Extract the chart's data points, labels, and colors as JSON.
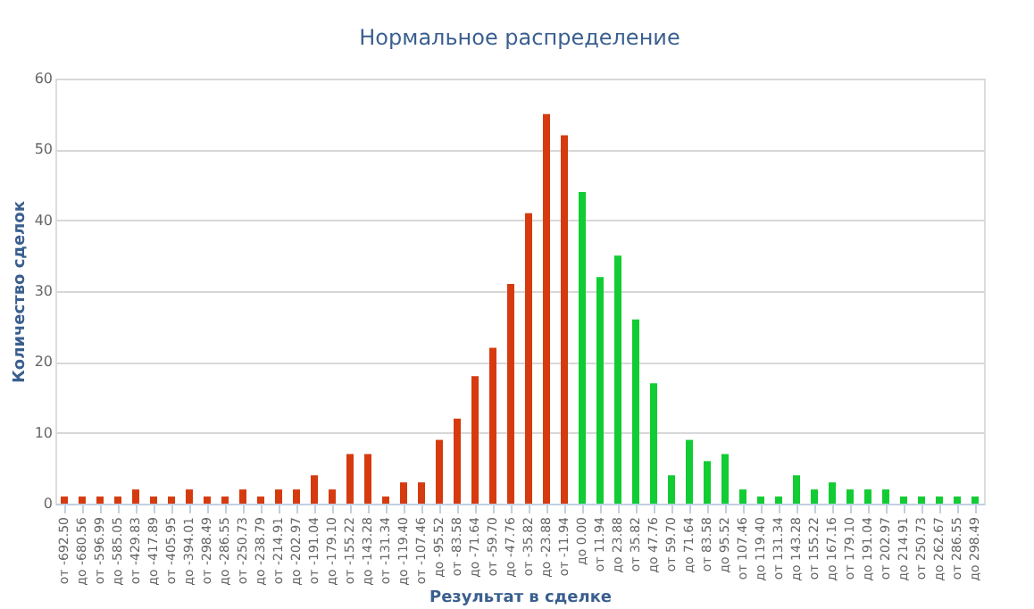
{
  "chart_data": {
    "type": "bar",
    "title": "Нормальное распределение",
    "xlabel": "Результат в сделке",
    "ylabel": "Количество сделок",
    "categories": [
      "от -692.50",
      "до -680.56",
      "от -596.99",
      "до -585.05",
      "от -429.83",
      "до -417.89",
      "от -405.95",
      "до -394.01",
      "от -298.49",
      "до -286.55",
      "от -250.73",
      "до -238.79",
      "от -214.91",
      "до -202.97",
      "от -191.04",
      "до -179.10",
      "от -155.22",
      "до -143.28",
      "от -131.34",
      "до -119.40",
      "от -107.46",
      "до -95.52",
      "от -83.58",
      "до -71.64",
      "от -59.70",
      "до -47.76",
      "от -35.82",
      "до -23.88",
      "от -11.94",
      "до 0.00",
      "от 11.94",
      "до 23.88",
      "от 35.82",
      "до 47.76",
      "от 59.70",
      "до 71.64",
      "от 83.58",
      "до 95.52",
      "от 107.46",
      "до 119.40",
      "от 131.34",
      "до 143.28",
      "от 155.22",
      "до 167.16",
      "от 179.10",
      "до 191.04",
      "от 202.97",
      "до 214.91",
      "от 250.73",
      "до 262.67",
      "от 286.55",
      "до 298.49"
    ],
    "values": [
      1,
      1,
      1,
      1,
      2,
      1,
      1,
      2,
      1,
      1,
      2,
      1,
      2,
      2,
      4,
      2,
      7,
      7,
      1,
      3,
      3,
      9,
      12,
      18,
      22,
      31,
      41,
      55,
      52,
      44,
      32,
      35,
      26,
      17,
      4,
      9,
      6,
      7,
      2,
      1,
      1,
      4,
      2,
      3,
      2,
      2,
      2,
      1,
      1,
      1,
      1,
      1
    ],
    "colors": [
      "#d63a0f",
      "#d63a0f",
      "#d63a0f",
      "#d63a0f",
      "#d63a0f",
      "#d63a0f",
      "#d63a0f",
      "#d63a0f",
      "#d63a0f",
      "#d63a0f",
      "#d63a0f",
      "#d63a0f",
      "#d63a0f",
      "#d63a0f",
      "#d63a0f",
      "#d63a0f",
      "#d63a0f",
      "#d63a0f",
      "#d63a0f",
      "#d63a0f",
      "#d63a0f",
      "#d63a0f",
      "#d63a0f",
      "#d63a0f",
      "#d63a0f",
      "#d63a0f",
      "#d63a0f",
      "#d63a0f",
      "#d63a0f",
      "#11cc33",
      "#11cc33",
      "#11cc33",
      "#11cc33",
      "#11cc33",
      "#11cc33",
      "#11cc33",
      "#11cc33",
      "#11cc33",
      "#11cc33",
      "#11cc33",
      "#11cc33",
      "#11cc33",
      "#11cc33",
      "#11cc33",
      "#11cc33",
      "#11cc33",
      "#11cc33",
      "#11cc33",
      "#11cc33",
      "#11cc33",
      "#11cc33",
      "#11cc33"
    ],
    "ylim": [
      0,
      60
    ],
    "yticks": [
      0,
      10,
      20,
      30,
      40,
      50,
      60
    ],
    "grid": "y"
  }
}
